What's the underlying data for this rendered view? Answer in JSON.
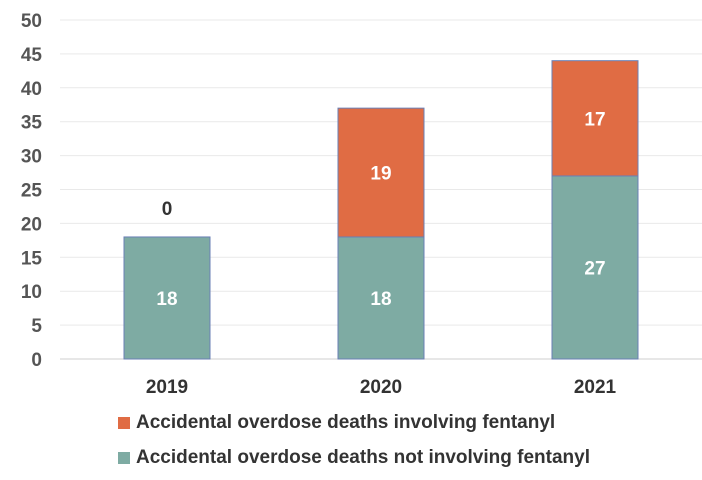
{
  "chart_data": {
    "type": "bar",
    "stacked": true,
    "categories": [
      "2019",
      "2020",
      "2021"
    ],
    "series": [
      {
        "name": "Accidental overdose deaths not involving fentanyl",
        "values": [
          18,
          18,
          27
        ],
        "color": "#7eaba3",
        "label_color": "#ffffff"
      },
      {
        "name": "Accidental overdose deaths involving fentanyl",
        "values": [
          0,
          19,
          17
        ],
        "color": "#e06c44",
        "label_color": "#ffffff"
      }
    ],
    "ylim": [
      0,
      50
    ],
    "yticks": [
      0,
      5,
      10,
      15,
      20,
      25,
      30,
      35,
      40,
      45,
      50
    ],
    "grid": true,
    "legend_position": "bottom",
    "zero_label_color": "#333333"
  }
}
